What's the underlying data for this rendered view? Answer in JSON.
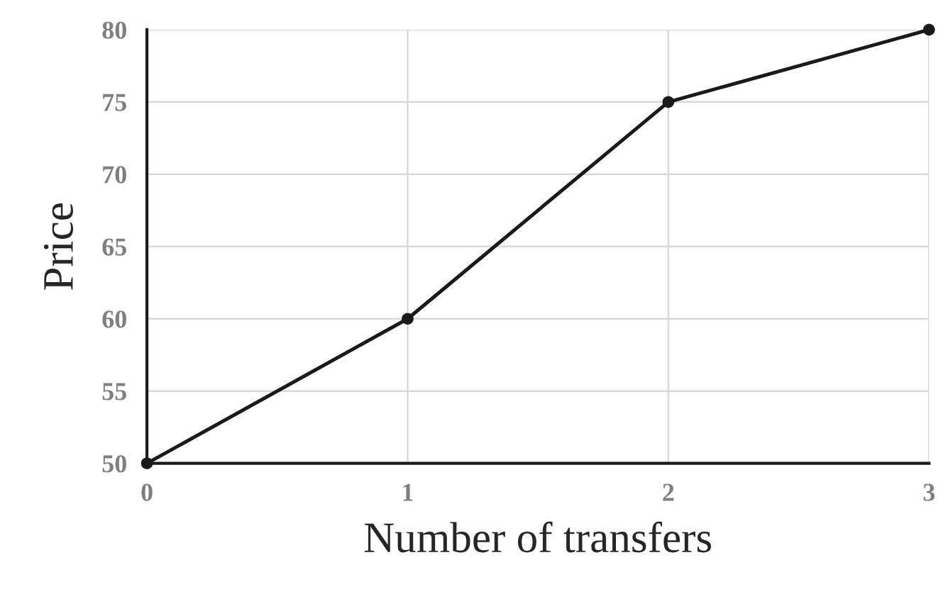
{
  "chart_data": {
    "type": "line",
    "xlabel": "Number of transfers",
    "ylabel": "Price",
    "x": [
      0,
      1,
      2,
      3
    ],
    "series": [
      {
        "color": "#1a1a1a",
        "values": [
          50,
          60,
          75,
          80
        ]
      }
    ],
    "xlim": [
      0,
      3
    ],
    "xticks": [
      0,
      1,
      2,
      3
    ],
    "ylim": [
      50,
      80
    ],
    "yticks": [
      50,
      55,
      60,
      65,
      70,
      75,
      80
    ],
    "grid": true,
    "marker": "circle",
    "line_style": "solid"
  }
}
